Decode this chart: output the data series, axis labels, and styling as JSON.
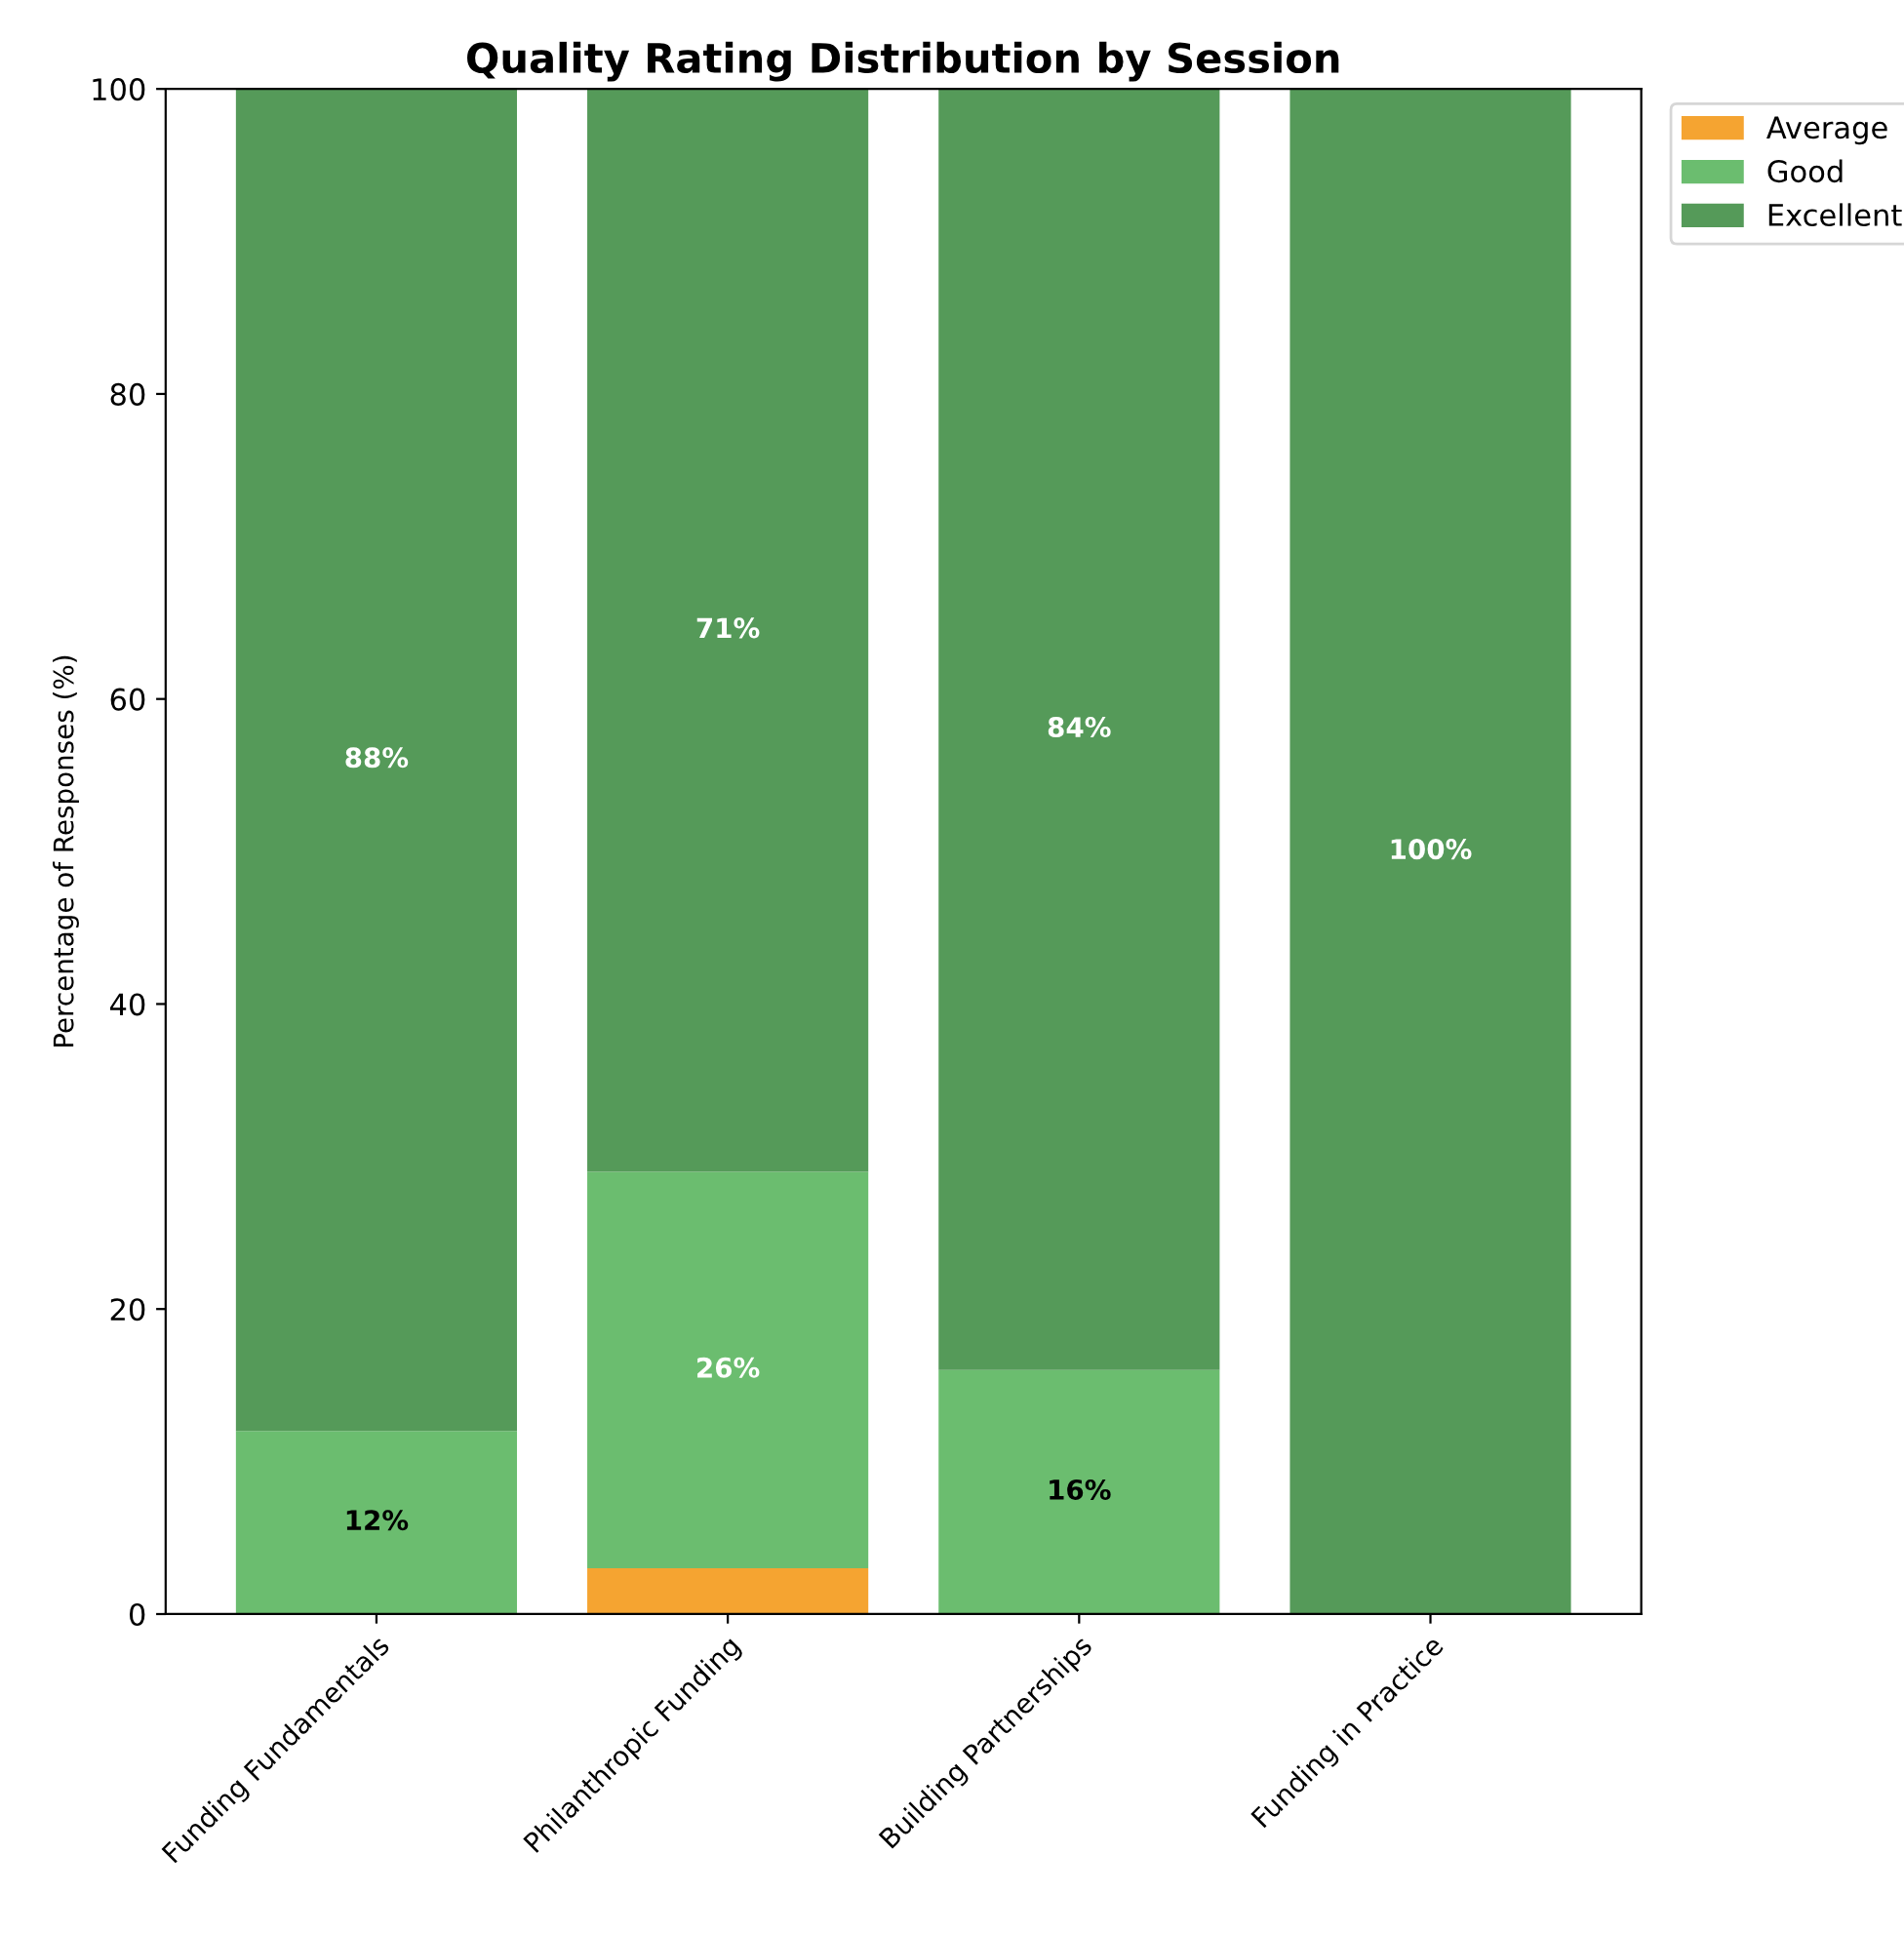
{
  "chart_data": {
    "type": "bar",
    "title": "Quality Rating Distribution by Session",
    "ylabel": "Percentage of Responses (%)",
    "categories": [
      "Funding Fundamentals",
      "Philanthropic Funding",
      "Building Partnerships",
      "Funding in Practice"
    ],
    "stacked": true,
    "series": [
      {
        "name": "Average",
        "color": "#f5a431",
        "values": [
          0,
          3,
          0,
          0
        ],
        "value_labels": [
          null,
          null,
          null,
          null
        ]
      },
      {
        "name": "Good",
        "color": "#6bbd6f",
        "values": [
          12,
          26,
          16,
          0
        ],
        "value_labels": [
          "12%",
          "26%",
          "16%",
          null
        ]
      },
      {
        "name": "Excellent",
        "color": "#559a59",
        "values": [
          88,
          71,
          84,
          100
        ],
        "value_labels": [
          "88%",
          "71%",
          "84%",
          "100%"
        ]
      }
    ],
    "ylim": [
      0,
      100
    ],
    "yticks": [
      0,
      20,
      40,
      60,
      80,
      100
    ],
    "grid": false,
    "legend": "top right"
  }
}
